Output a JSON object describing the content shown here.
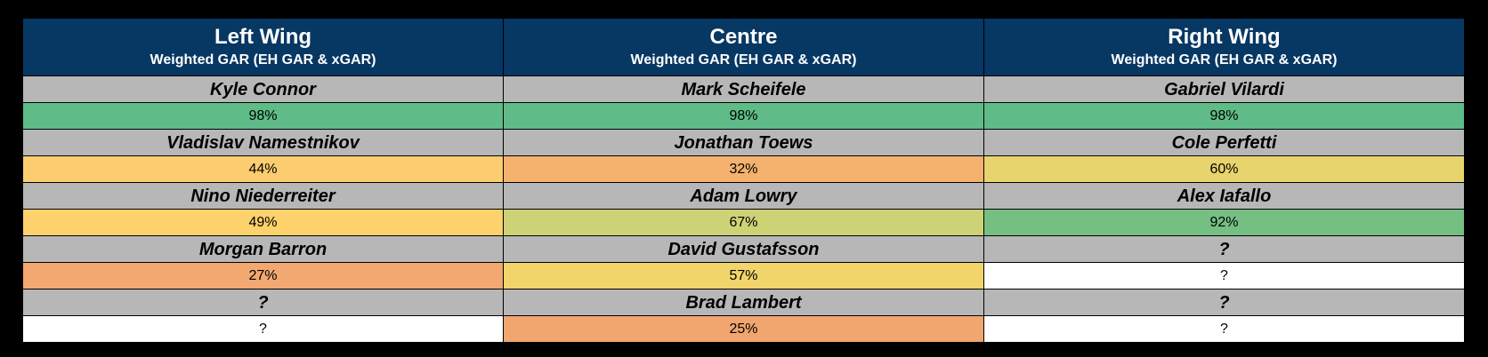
{
  "columns": [
    {
      "title": "Left Wing",
      "subtitle": "Weighted GAR (EH GAR & xGAR)",
      "players": [
        {
          "name": "Kyle Connor",
          "value": "98%",
          "color": "#5fbb87"
        },
        {
          "name": "Vladislav Namestnikov",
          "value": "44%",
          "color": "#fbcd70"
        },
        {
          "name": "Nino Niederreiter",
          "value": "49%",
          "color": "#fdd16b"
        },
        {
          "name": "Morgan Barron",
          "value": "27%",
          "color": "#f2a870"
        },
        {
          "name": "?",
          "value": "?",
          "color": "#ffffff"
        }
      ]
    },
    {
      "title": "Centre",
      "subtitle": "Weighted GAR (EH GAR & xGAR)",
      "players": [
        {
          "name": "Mark Scheifele",
          "value": "98%",
          "color": "#5fbb87"
        },
        {
          "name": "Jonathan Toews",
          "value": "32%",
          "color": "#f4b26e"
        },
        {
          "name": "Adam Lowry",
          "value": "67%",
          "color": "#cdd276"
        },
        {
          "name": "David Gustafsson",
          "value": "57%",
          "color": "#f1d56b"
        },
        {
          "name": "Brad Lambert",
          "value": "25%",
          "color": "#f0a66e"
        }
      ]
    },
    {
      "title": "Right Wing",
      "subtitle": "Weighted GAR (EH GAR & xGAR)",
      "players": [
        {
          "name": "Gabriel Vilardi",
          "value": "98%",
          "color": "#5fbb87"
        },
        {
          "name": "Cole Perfetti",
          "value": "60%",
          "color": "#e8d46c"
        },
        {
          "name": "Alex Iafallo",
          "value": "92%",
          "color": "#75bf82"
        },
        {
          "name": "?",
          "value": "?",
          "color": "#ffffff"
        },
        {
          "name": "?",
          "value": "?",
          "color": "#ffffff"
        }
      ]
    }
  ]
}
